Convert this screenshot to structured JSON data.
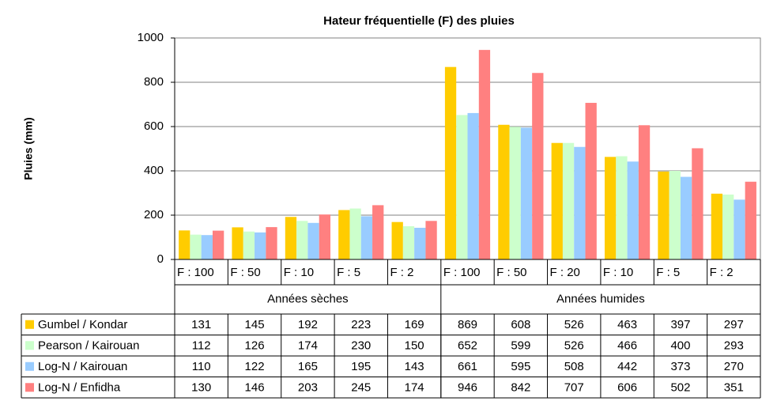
{
  "chart_data": {
    "type": "bar",
    "title": "Hateur fréquentielle (F) des pluies",
    "y_label": "Pluies (mm)",
    "categories": [
      "F : 100",
      "F : 50",
      "F : 10",
      "F : 5",
      "F : 2",
      "F : 100",
      "F : 50",
      "F : 20",
      "F : 10",
      "F : 5",
      "F : 2"
    ],
    "groups": [
      {
        "label": "Années sèches",
        "size": 5
      },
      {
        "label": "Années humides",
        "size": 6
      }
    ],
    "series": [
      {
        "name": "Gumbel / Kondar",
        "color": "#ffcc00",
        "values": [
          131,
          145,
          192,
          223,
          169,
          869,
          608,
          526,
          463,
          397,
          297
        ]
      },
      {
        "name": "Pearson / Kairouan",
        "color": "#ccffcc",
        "values": [
          112,
          126,
          174,
          230,
          150,
          652,
          599,
          526,
          466,
          400,
          293
        ]
      },
      {
        "name": "Log-N / Kairouan",
        "color": "#99ccff",
        "values": [
          110,
          122,
          165,
          195,
          143,
          661,
          595,
          508,
          442,
          373,
          270
        ]
      },
      {
        "name": "Log-N / Enfidha",
        "color": "#ff8080",
        "values": [
          130,
          146,
          203,
          245,
          174,
          946,
          842,
          707,
          606,
          502,
          351
        ]
      }
    ],
    "ylim": [
      0,
      1000
    ],
    "yticks": [
      0,
      200,
      400,
      600,
      800,
      1000
    ],
    "grid": true
  }
}
